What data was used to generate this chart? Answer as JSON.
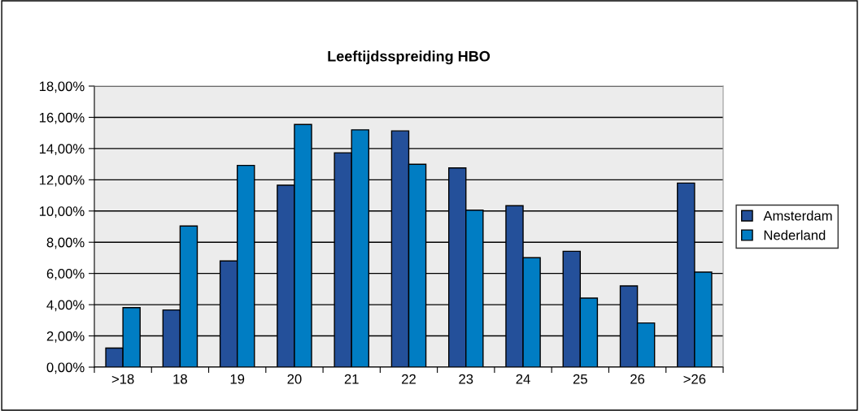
{
  "chart_data": {
    "type": "bar",
    "title": "Leeftijdsspreiding HBO",
    "categories": [
      ">18",
      "18",
      "19",
      "20",
      "21",
      "22",
      "23",
      "24",
      "25",
      "26",
      ">26"
    ],
    "series": [
      {
        "name": "Amsterdam",
        "color": "#24509a",
        "values": [
          1.22,
          3.66,
          6.8,
          11.65,
          13.73,
          15.13,
          12.76,
          10.34,
          7.42,
          5.2,
          11.79
        ]
      },
      {
        "name": "Nederland",
        "color": "#007dc3",
        "values": [
          3.81,
          9.04,
          12.92,
          15.54,
          15.2,
          12.99,
          10.05,
          7.01,
          4.42,
          2.83,
          6.09
        ]
      }
    ],
    "ylim": [
      0,
      18
    ],
    "yticks": [
      {
        "value": 0,
        "label": "0,00%"
      },
      {
        "value": 2,
        "label": "2,00%"
      },
      {
        "value": 4,
        "label": "4,00%"
      },
      {
        "value": 6,
        "label": "6,00%"
      },
      {
        "value": 8,
        "label": "8,00%"
      },
      {
        "value": 10,
        "label": "10,00%"
      },
      {
        "value": 12,
        "label": "12,00%"
      },
      {
        "value": 14,
        "label": "14,00%"
      },
      {
        "value": 16,
        "label": "16,00%"
      },
      {
        "value": 18,
        "label": "18,00%"
      }
    ],
    "grid": "y",
    "legend": "right"
  }
}
